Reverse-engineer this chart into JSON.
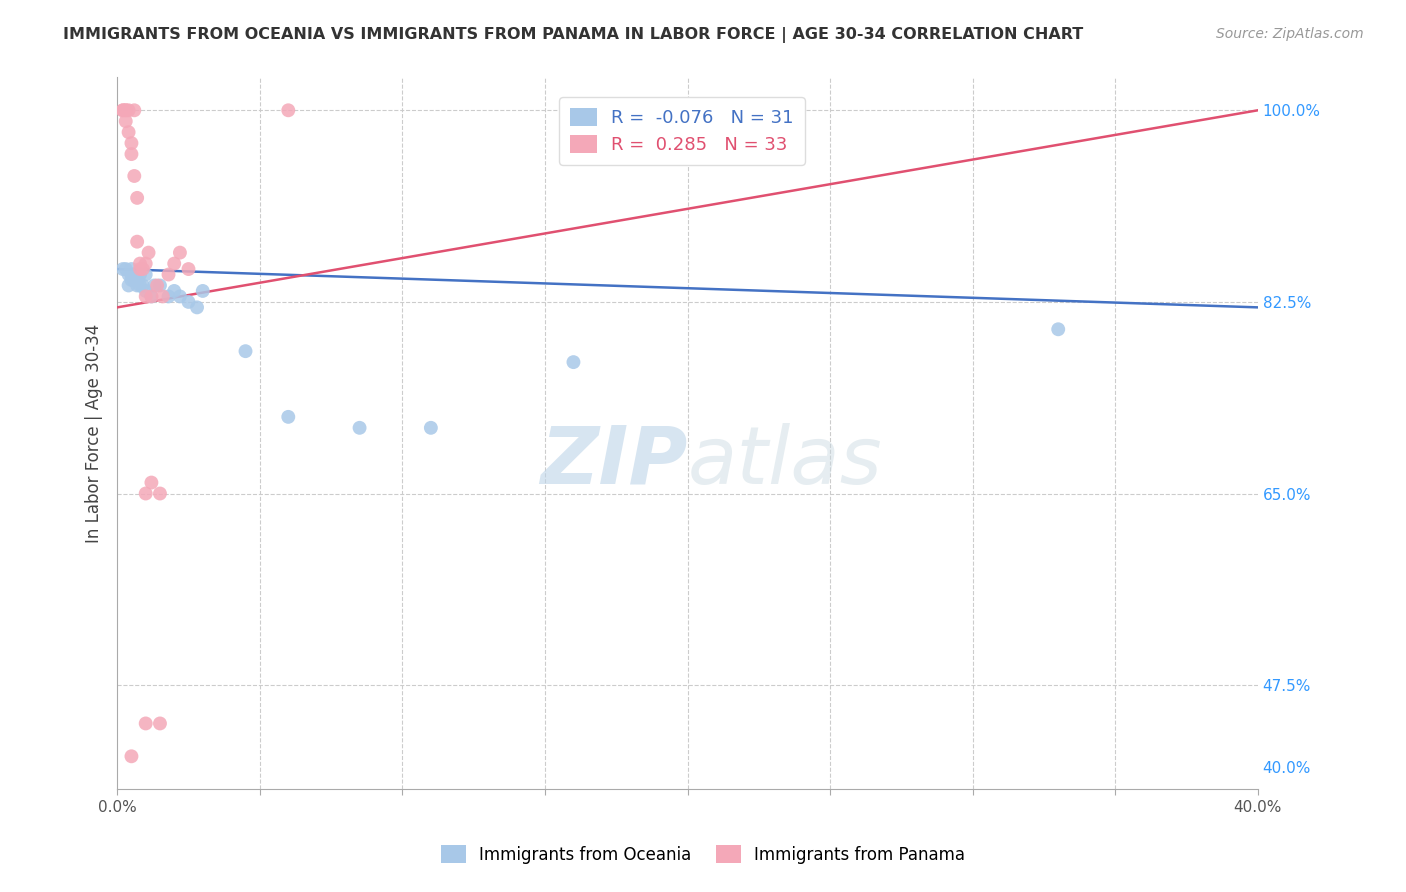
{
  "title": "IMMIGRANTS FROM OCEANIA VS IMMIGRANTS FROM PANAMA IN LABOR FORCE | AGE 30-34 CORRELATION CHART",
  "source": "Source: ZipAtlas.com",
  "ylabel": "In Labor Force | Age 30-34",
  "xlim": [
    0.0,
    0.4
  ],
  "ylim": [
    0.38,
    1.03
  ],
  "xticks": [
    0.0,
    0.05,
    0.1,
    0.15,
    0.2,
    0.25,
    0.3,
    0.35,
    0.4
  ],
  "xtick_labels": [
    "0.0%",
    "",
    "",
    "",
    "",
    "",
    "",
    "",
    "40.0%"
  ],
  "blue_R": -0.076,
  "blue_N": 31,
  "pink_R": 0.285,
  "pink_N": 33,
  "blue_color": "#A8C8E8",
  "pink_color": "#F4A8B8",
  "blue_line_color": "#4472C4",
  "pink_line_color": "#E05070",
  "legend_label_blue": "Immigrants from Oceania",
  "legend_label_pink": "Immigrants from Panama",
  "watermark_zip": "ZIP",
  "watermark_atlas": "atlas",
  "right_yticks": [
    1.0,
    0.825,
    0.65,
    0.475,
    0.4
  ],
  "right_ytick_labels": [
    "100.0%",
    "82.5%",
    "65.0%",
    "47.5%",
    "40.0%"
  ],
  "grid_yticks": [
    1.0,
    0.825,
    0.65,
    0.475
  ],
  "blue_scatter_x": [
    0.002,
    0.003,
    0.004,
    0.004,
    0.005,
    0.005,
    0.005,
    0.006,
    0.006,
    0.007,
    0.007,
    0.008,
    0.008,
    0.009,
    0.01,
    0.01,
    0.012,
    0.013,
    0.015,
    0.018,
    0.02,
    0.022,
    0.025,
    0.028,
    0.03,
    0.045,
    0.06,
    0.085,
    0.11,
    0.16,
    0.33
  ],
  "blue_scatter_y": [
    0.855,
    0.855,
    0.85,
    0.84,
    0.855,
    0.85,
    0.845,
    0.85,
    0.845,
    0.84,
    0.845,
    0.84,
    0.85,
    0.84,
    0.835,
    0.85,
    0.83,
    0.84,
    0.84,
    0.83,
    0.835,
    0.83,
    0.825,
    0.82,
    0.835,
    0.78,
    0.72,
    0.71,
    0.71,
    0.77,
    0.8
  ],
  "pink_scatter_x": [
    0.002,
    0.002,
    0.003,
    0.003,
    0.003,
    0.004,
    0.004,
    0.005,
    0.005,
    0.006,
    0.006,
    0.007,
    0.007,
    0.008,
    0.008,
    0.009,
    0.01,
    0.01,
    0.011,
    0.012,
    0.014,
    0.016,
    0.018,
    0.02,
    0.022,
    0.025,
    0.06,
    0.01,
    0.012,
    0.015,
    0.005,
    0.01,
    0.015
  ],
  "pink_scatter_y": [
    1.0,
    1.0,
    1.0,
    1.0,
    0.99,
    1.0,
    0.98,
    0.97,
    0.96,
    1.0,
    0.94,
    0.92,
    0.88,
    0.855,
    0.86,
    0.855,
    0.83,
    0.86,
    0.87,
    0.83,
    0.84,
    0.83,
    0.85,
    0.86,
    0.87,
    0.855,
    1.0,
    0.65,
    0.66,
    0.65,
    0.41,
    0.44,
    0.44
  ],
  "blue_trend_x": [
    0.0,
    0.4
  ],
  "blue_trend_y": [
    0.855,
    0.82
  ],
  "pink_trend_x": [
    0.0,
    0.4
  ],
  "pink_trend_y": [
    0.82,
    1.0
  ]
}
